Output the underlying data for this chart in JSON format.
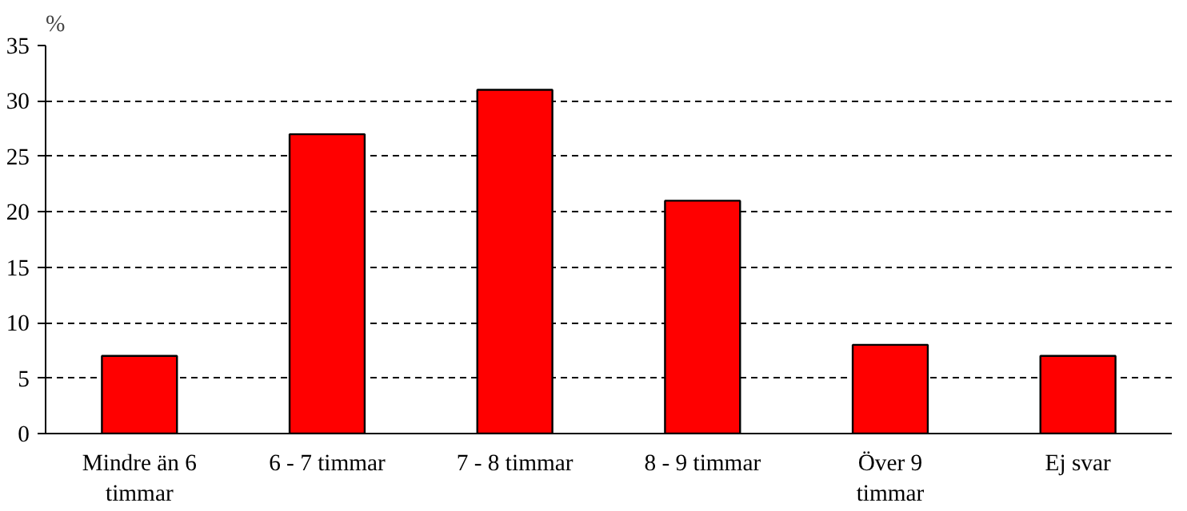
{
  "chart_data": {
    "type": "bar",
    "ylabel": "%",
    "categories": [
      "Mindre än 6 timmar",
      "6 - 7 timmar",
      "7 - 8 timmar",
      "8 - 9 timmar",
      "Över 9 timmar",
      "Ej svar"
    ],
    "values": [
      7,
      27,
      31,
      21,
      8,
      7
    ],
    "color": "#ff0000",
    "ylim": [
      0,
      35
    ],
    "yticks": [
      0,
      5,
      10,
      15,
      20,
      25,
      30,
      35
    ],
    "grid": "y"
  }
}
